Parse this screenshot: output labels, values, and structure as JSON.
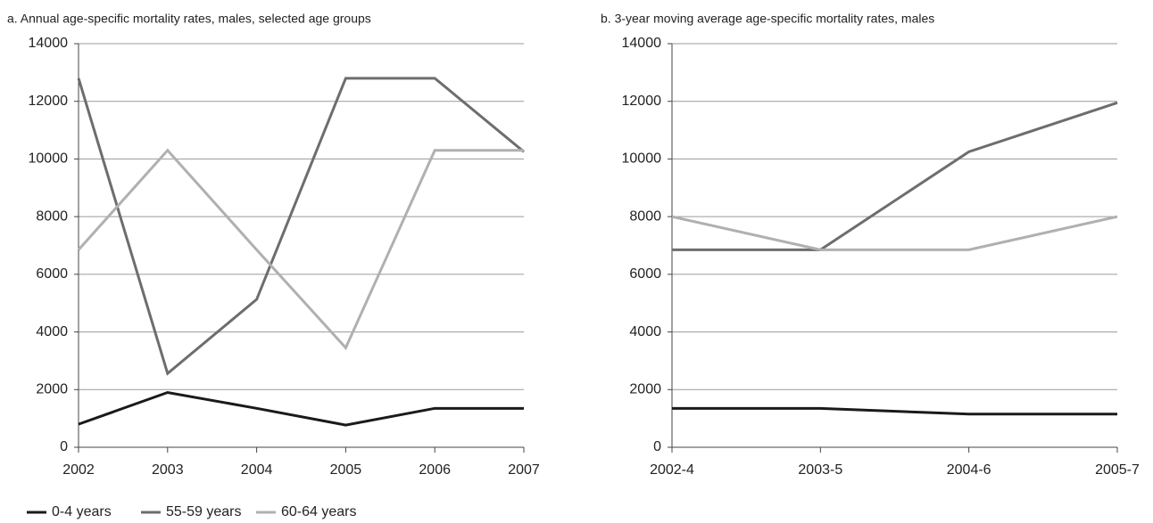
{
  "chart_data": [
    {
      "type": "line",
      "title": "a.  Annual age-specific mortality rates, males, selected age groups",
      "categories": [
        "2002",
        "2003",
        "2004",
        "2005",
        "2006",
        "2007"
      ],
      "series": [
        {
          "name": "0-4 years",
          "color": "#1a1a1a",
          "values": [
            800,
            1900,
            1350,
            770,
            1350,
            1350
          ]
        },
        {
          "name": "55-59 years",
          "color": "#6d6d6d",
          "values": [
            12800,
            2560,
            5130,
            12800,
            12800,
            10250
          ]
        },
        {
          "name": "60-64 years",
          "color": "#b0b0b0",
          "values": [
            6850,
            10300,
            6850,
            3450,
            10300,
            10300
          ]
        }
      ],
      "ylim": [
        0,
        14000
      ],
      "yticks": [
        0,
        2000,
        4000,
        6000,
        8000,
        10000,
        12000,
        14000
      ],
      "grid": true,
      "legend": "bottom-left"
    },
    {
      "type": "line",
      "title": "b.  3-year moving average age-specific mortality rates, males",
      "categories": [
        "2002-4",
        "2003-5",
        "2004-6",
        "2005-7"
      ],
      "series": [
        {
          "name": "0-4 years",
          "color": "#1a1a1a",
          "values": [
            1350,
            1350,
            1150,
            1150
          ]
        },
        {
          "name": "55-59 years",
          "color": "#6d6d6d",
          "values": [
            6850,
            6850,
            10250,
            11950
          ]
        },
        {
          "name": "60-64 years",
          "color": "#b0b0b0",
          "values": [
            8000,
            6850,
            6850,
            8000
          ]
        }
      ],
      "ylim": [
        0,
        14000
      ],
      "yticks": [
        0,
        2000,
        4000,
        6000,
        8000,
        10000,
        12000,
        14000
      ],
      "grid": true,
      "legend": "none"
    }
  ]
}
